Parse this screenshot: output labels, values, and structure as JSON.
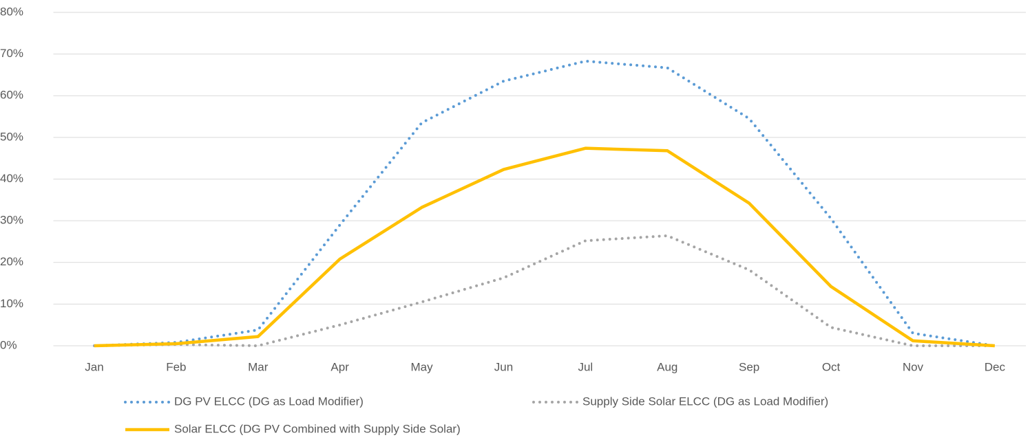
{
  "chart_data": {
    "type": "line",
    "categories": [
      "Jan",
      "Feb",
      "Mar",
      "Apr",
      "May",
      "Jun",
      "Jul",
      "Aug",
      "Sep",
      "Oct",
      "Nov",
      "Dec"
    ],
    "series": [
      {
        "name": "DG PV ELCC (DG as Load Modifier)",
        "color": "#5b9bd5",
        "line_style": "dotted",
        "values": [
          0,
          0.8,
          3.8,
          29,
          53.5,
          63.5,
          68.3,
          66.7,
          54.5,
          30.5,
          3,
          0
        ]
      },
      {
        "name": "Supply Side Solar ELCC (DG as Load Modifier)",
        "color": "#a5a5a5",
        "line_style": "dotted",
        "values": [
          0,
          0.3,
          0,
          5,
          10.5,
          16.3,
          25.2,
          26.4,
          18.2,
          4.4,
          0,
          0
        ]
      },
      {
        "name": "Solar ELCC (DG PV Combined with Supply Side Solar)",
        "color": "#ffc000",
        "line_style": "solid",
        "values": [
          0,
          0.5,
          2.2,
          20.8,
          33.2,
          42.3,
          47.4,
          46.8,
          34.2,
          14.2,
          1.2,
          0
        ]
      }
    ],
    "ylim": [
      0,
      80
    ],
    "yticks": [
      {
        "value": 0,
        "label": "0%"
      },
      {
        "value": 10,
        "label": "10%"
      },
      {
        "value": 20,
        "label": "20%"
      },
      {
        "value": 30,
        "label": "30%"
      },
      {
        "value": 40,
        "label": "40%"
      },
      {
        "value": 50,
        "label": "50%"
      },
      {
        "value": 60,
        "label": "60%"
      },
      {
        "value": 70,
        "label": "70%"
      },
      {
        "value": 80,
        "label": "80%"
      }
    ],
    "grid": true
  }
}
